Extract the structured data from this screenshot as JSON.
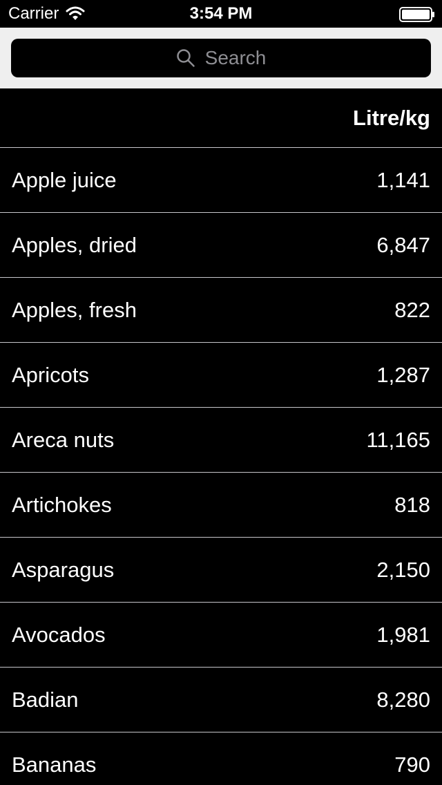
{
  "status_bar": {
    "carrier": "Carrier",
    "time": "3:54 PM",
    "icons": [
      "wifi-icon",
      "battery-icon"
    ]
  },
  "search": {
    "placeholder": "Search",
    "icon": "search-icon"
  },
  "table": {
    "header": "Litre/kg",
    "rows": [
      {
        "name": "Apple juice",
        "value": "1,141"
      },
      {
        "name": "Apples, dried",
        "value": "6,847"
      },
      {
        "name": "Apples, fresh",
        "value": "822"
      },
      {
        "name": "Apricots",
        "value": "1,287"
      },
      {
        "name": "Areca nuts",
        "value": "11,165"
      },
      {
        "name": "Artichokes",
        "value": "818"
      },
      {
        "name": "Asparagus",
        "value": "2,150"
      },
      {
        "name": "Avocados",
        "value": "1,981"
      },
      {
        "name": "Badian",
        "value": "8,280"
      },
      {
        "name": "Bananas",
        "value": "790"
      }
    ]
  },
  "colors": {
    "background": "#000000",
    "search_area": "#efefef",
    "separator": "#c8c7cc",
    "placeholder": "#8e8e93",
    "text": "#ffffff"
  }
}
